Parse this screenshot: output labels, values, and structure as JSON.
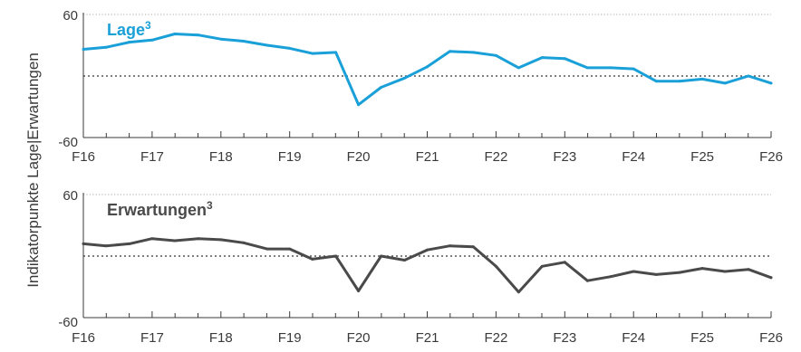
{
  "chart_data": [
    {
      "type": "line",
      "title": "Lage",
      "title_superscript": "3",
      "ylabel": "Indikatorpunkte Lage|Erwartungen",
      "ylim": [
        -60,
        60
      ],
      "y_ticks": [
        "60",
        "-60"
      ],
      "x_ticks": [
        "F16",
        "F17",
        "F18",
        "F19",
        "F20",
        "F21",
        "F22",
        "F23",
        "F24",
        "F25",
        "F26"
      ],
      "reference_line": 0,
      "grid": "top dotted line, zero dotted line",
      "series": [
        {
          "color": "#1aa0d8",
          "x": [
            2016.0,
            2016.33,
            2016.67,
            2017.0,
            2017.33,
            2017.67,
            2018.0,
            2018.33,
            2018.67,
            2019.0,
            2019.33,
            2019.67,
            2020.0,
            2020.33,
            2020.67,
            2021.0,
            2021.33,
            2021.67,
            2022.0,
            2022.33,
            2022.67,
            2023.0,
            2023.33,
            2023.67,
            2024.0,
            2024.33,
            2024.67,
            2025.0,
            2025.33,
            2025.67,
            2026.0
          ],
          "values": [
            26,
            28,
            33,
            35,
            41,
            40,
            36,
            34,
            30,
            27,
            22,
            23,
            -28,
            -11,
            -2,
            9,
            24,
            23,
            20,
            8,
            18,
            17,
            8,
            8,
            7,
            -5,
            -5,
            -3,
            -7,
            0,
            -7
          ]
        }
      ]
    },
    {
      "type": "line",
      "title": "Erwartungen",
      "title_superscript": "3",
      "ylim": [
        -60,
        60
      ],
      "y_ticks": [
        "60",
        "-60"
      ],
      "x_ticks": [
        "F16",
        "F17",
        "F18",
        "F19",
        "F20",
        "F21",
        "F22",
        "F23",
        "F24",
        "F25",
        "F26"
      ],
      "reference_line": 0,
      "grid": "top dotted line, zero dotted line",
      "series": [
        {
          "color": "#4a4a4a",
          "x": [
            2016.0,
            2016.33,
            2016.67,
            2017.0,
            2017.33,
            2017.67,
            2018.0,
            2018.33,
            2018.67,
            2019.0,
            2019.33,
            2019.67,
            2020.0,
            2020.33,
            2020.67,
            2021.0,
            2021.33,
            2021.67,
            2022.0,
            2022.33,
            2022.67,
            2023.0,
            2023.33,
            2023.67,
            2024.0,
            2024.33,
            2024.67,
            2025.0,
            2025.33,
            2025.67,
            2026.0
          ],
          "values": [
            12,
            10,
            12,
            17,
            15,
            17,
            16,
            13,
            7,
            7,
            -3,
            0,
            -34,
            0,
            -4,
            6,
            10,
            9,
            -10,
            -35,
            -10,
            -6,
            -24,
            -20,
            -15,
            -18,
            -16,
            -12,
            -15,
            -13,
            -21
          ]
        }
      ]
    }
  ]
}
